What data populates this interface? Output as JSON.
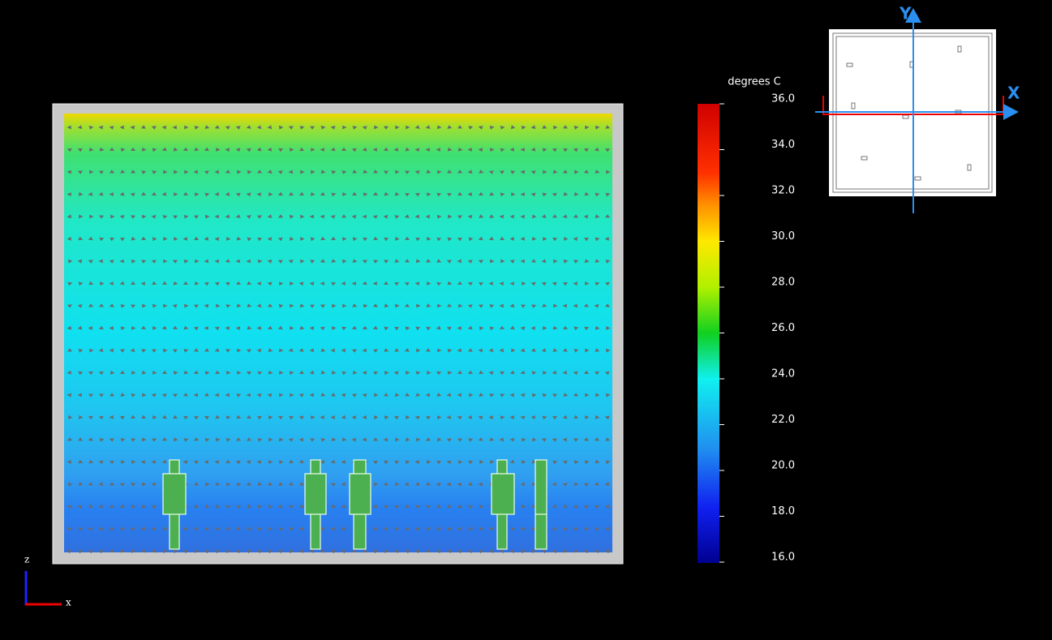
{
  "legend": {
    "title": "degrees C",
    "range": [
      16,
      36
    ],
    "ticks": [
      {
        "value": 36,
        "label": "36.0"
      },
      {
        "value": 34,
        "label": "34.0"
      },
      {
        "value": 32,
        "label": "32.0"
      },
      {
        "value": 30,
        "label": "30.0"
      },
      {
        "value": 28,
        "label": "28.0"
      },
      {
        "value": 26,
        "label": "26.0"
      },
      {
        "value": 24,
        "label": "24.0"
      },
      {
        "value": 22,
        "label": "22.0"
      },
      {
        "value": 20,
        "label": "20.0"
      },
      {
        "value": 18,
        "label": "18.0"
      },
      {
        "value": 16,
        "label": "16.0"
      }
    ]
  },
  "view_axes": {
    "vertical": "z",
    "horizontal": "x"
  },
  "inset_axes": {
    "y": "Y",
    "x": "X"
  }
}
